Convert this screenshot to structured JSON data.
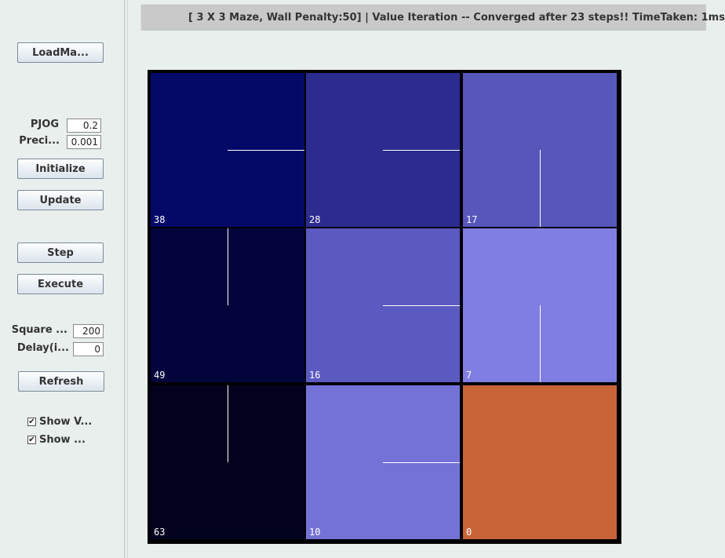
{
  "sidebar": {
    "load_maze_label": "LoadMa...",
    "pjog_label": "PJOG",
    "pjog_value": "0.2",
    "precision_label": "Preci...",
    "precision_value": "0.001",
    "initialize_label": "Initialize",
    "update_label": "Update",
    "step_label": "Step",
    "execute_label": "Execute",
    "square_label": "Square ...",
    "square_value": "200",
    "delay_label": "Delay(i...",
    "delay_value": "0",
    "refresh_label": "Refresh",
    "show_values_label": "Show V...",
    "show_policy_label": "Show ...",
    "show_values_checked": true,
    "show_policy_checked": true
  },
  "status": {
    "text": "[ 3 X 3 Maze, Wall Penalty:50] |  Value Iteration -- Converged after 23 steps!! TimeTaken: 1ms"
  },
  "maze": {
    "rows": 3,
    "cols": 3,
    "cells": [
      {
        "value": "38",
        "color": "#040866",
        "policy": "east"
      },
      {
        "value": "28",
        "color": "#2c2b8f",
        "policy": "east"
      },
      {
        "value": "17",
        "color": "#5756bb",
        "policy": "south"
      },
      {
        "value": "49",
        "color": "#03043b",
        "policy": "north"
      },
      {
        "value": "16",
        "color": "#5b5ac1",
        "policy": "east"
      },
      {
        "value": "7",
        "color": "#807ee2",
        "policy": "south"
      },
      {
        "value": "63",
        "color": "#02021f",
        "policy": "north"
      },
      {
        "value": "10",
        "color": "#7472d6",
        "policy": "east"
      },
      {
        "value": "0",
        "color": "#c96439",
        "policy": "none"
      }
    ]
  }
}
